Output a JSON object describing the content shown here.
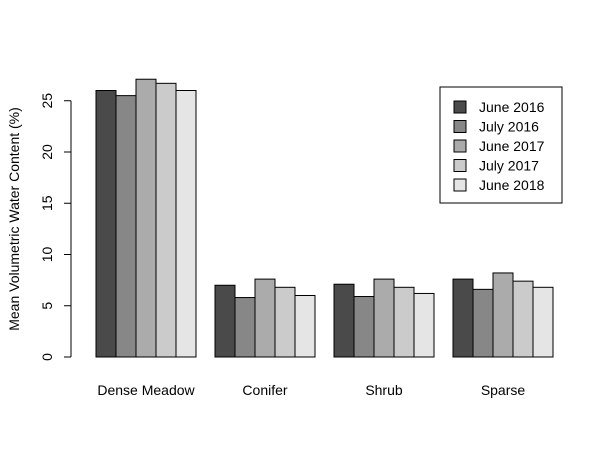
{
  "chart_data": {
    "type": "bar",
    "ylabel": "Mean Volumetric Water Content (%)",
    "xlabel": "",
    "ylim": [
      0,
      25
    ],
    "yticks": [
      0,
      5,
      10,
      15,
      20,
      25
    ],
    "categories": [
      "Dense Meadow",
      "Conifer",
      "Shrub",
      "Sparse"
    ],
    "series": [
      {
        "name": "June 2016",
        "color": "#4a4a4a",
        "values": [
          26.0,
          7.0,
          7.1,
          7.6
        ]
      },
      {
        "name": "July 2016",
        "color": "#878787",
        "values": [
          25.5,
          5.8,
          5.9,
          6.6
        ]
      },
      {
        "name": "June 2017",
        "color": "#ababab",
        "values": [
          27.1,
          7.6,
          7.6,
          8.2
        ]
      },
      {
        "name": "July 2017",
        "color": "#cbcbcb",
        "values": [
          26.7,
          6.8,
          6.8,
          7.4
        ]
      },
      {
        "name": "June 2018",
        "color": "#e5e5e5",
        "values": [
          26.0,
          6.0,
          6.2,
          6.8
        ]
      }
    ],
    "legend_position": "top-right",
    "grid": false
  }
}
